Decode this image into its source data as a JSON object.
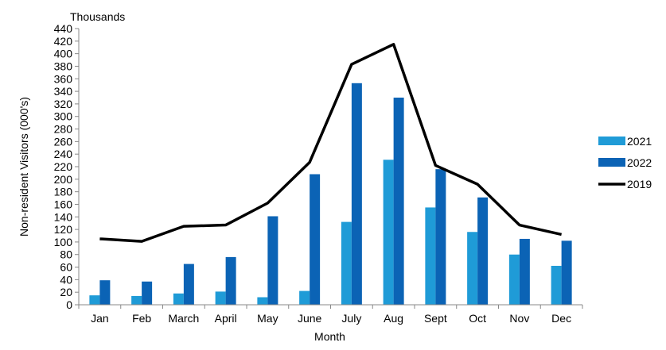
{
  "chart_data": {
    "type": "bar",
    "title": "",
    "unit_label": "Thousands",
    "xlabel": "Month",
    "ylabel": "Non-resident Visitors (000's)",
    "ylim": [
      0,
      440
    ],
    "ytick_step": 20,
    "categories": [
      "Jan",
      "Feb",
      "March",
      "April",
      "May",
      "June",
      "July",
      "Aug",
      "Sept",
      "Oct",
      "Nov",
      "Dec"
    ],
    "series": [
      {
        "name": "2021",
        "kind": "bar",
        "color": "#1f9bd7",
        "values": [
          15,
          14,
          18,
          21,
          12,
          22,
          132,
          231,
          155,
          116,
          80,
          62
        ]
      },
      {
        "name": "2022",
        "kind": "bar",
        "color": "#0b63b5",
        "values": [
          39,
          37,
          65,
          76,
          141,
          208,
          353,
          330,
          216,
          171,
          105,
          102
        ]
      },
      {
        "name": "2019",
        "kind": "line",
        "color": "#000000",
        "values": [
          105,
          101,
          125,
          127,
          162,
          227,
          383,
          415,
          222,
          192,
          127,
          112
        ]
      }
    ],
    "legend_position": "right",
    "grid": false
  }
}
